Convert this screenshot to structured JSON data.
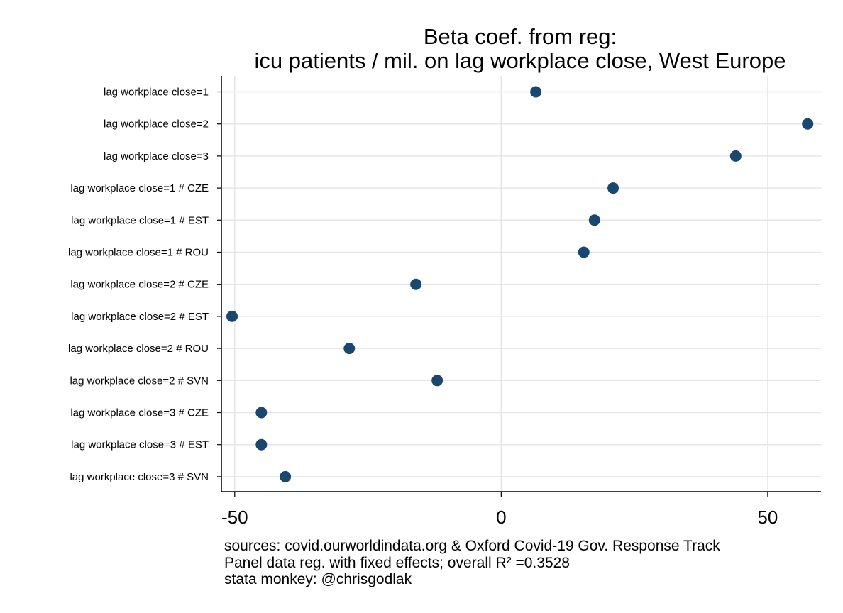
{
  "chart_data": {
    "type": "scatter",
    "title": [
      "Beta coef. from reg:",
      "icu patients / mil. on lag workplace close, West Europe"
    ],
    "xlabel": "",
    "ylabel": "",
    "xlim": [
      -52.5,
      60
    ],
    "xticks": [
      -50,
      0,
      50
    ],
    "xtick_labels": [
      "-50",
      "0",
      "50"
    ],
    "grid": true,
    "marker_color": "#1a476f",
    "categories": [
      "lag workplace close=1",
      "lag workplace close=2",
      "lag workplace close=3",
      "lag workplace close=1 # CZE",
      "lag workplace close=1 # EST",
      "lag workplace close=1 # ROU",
      "lag workplace close=2 # CZE",
      "lag workplace close=2 # EST",
      "lag workplace close=2 # ROU",
      "lag workplace close=2 # SVN",
      "lag workplace close=3 # CZE",
      "lag workplace close=3 # EST",
      "lag workplace close=3 # SVN"
    ],
    "values": [
      6.5,
      57.5,
      44.0,
      21.0,
      17.5,
      15.5,
      -16.0,
      -50.5,
      -28.5,
      -12.0,
      -45.0,
      -45.0,
      -40.5
    ]
  },
  "notes": [
    "sources: covid.ourworldindata.org & Oxford Covid-19 Gov. Response Track",
    "Panel data reg. with fixed effects; overall R² =0.3528",
    "stata monkey: @chrisgodlak"
  ]
}
